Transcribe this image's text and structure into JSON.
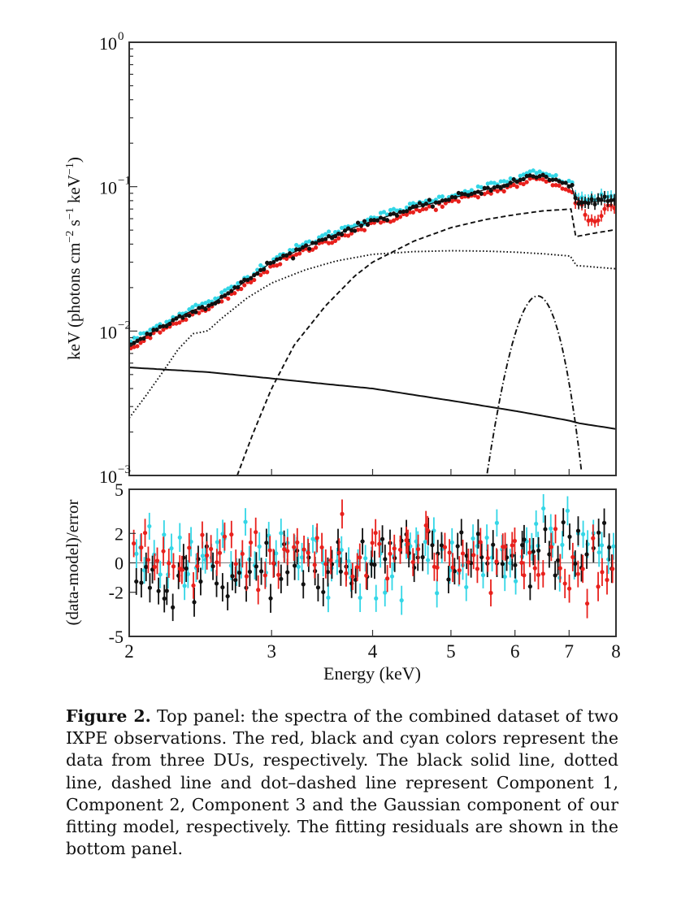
{
  "chart_data": [
    {
      "panel": "top",
      "type": "scatter",
      "xscale": "log",
      "yscale": "log",
      "xlim": [
        2,
        8
      ],
      "ylim": [
        0.001,
        1
      ],
      "xlabel": "",
      "ylabel": "keV (photons cm^-2 s^-1 keV^-1)",
      "ylabel_parts": {
        "base": "keV (photons cm",
        "e1": "−2",
        "mid": " s",
        "e2": "−1",
        "mid2": " keV",
        "e3": "−1",
        "end": ")"
      },
      "yticks": [
        {
          "value": 1,
          "base": "10",
          "exp": "0"
        },
        {
          "value": 0.1,
          "base": "10",
          "exp": "−1"
        },
        {
          "value": 0.01,
          "base": "10",
          "exp": "−2"
        },
        {
          "value": 0.001,
          "base": "10",
          "exp": "−3"
        }
      ],
      "data_series": [
        {
          "name": "DU (red)",
          "color": "#e8201c",
          "offset": 0.94
        },
        {
          "name": "DU (black)",
          "color": "#111111",
          "offset": 1.0
        },
        {
          "name": "DU (cyan)",
          "color": "#33d6e6",
          "offset": 1.05
        }
      ],
      "total_model_curve": {
        "x": [
          2.0,
          2.2,
          2.4,
          2.5,
          2.7,
          3.0,
          3.5,
          4.0,
          4.5,
          5.0,
          5.5,
          6.0,
          6.3,
          6.5,
          6.8,
          7.05,
          7.12,
          7.3,
          7.6,
          8.0
        ],
        "y": [
          0.008,
          0.0108,
          0.014,
          0.0148,
          0.0195,
          0.03,
          0.044,
          0.058,
          0.071,
          0.083,
          0.095,
          0.108,
          0.119,
          0.118,
          0.108,
          0.101,
          0.082,
          0.078,
          0.079,
          0.081
        ]
      },
      "model_components": [
        {
          "name": "Component 1",
          "style": "solid",
          "x": [
            2.0,
            2.5,
            3.0,
            3.5,
            4.0,
            5.0,
            6.0,
            7.0,
            7.2,
            8.0
          ],
          "y": [
            0.0056,
            0.0052,
            0.0047,
            0.0043,
            0.004,
            0.0033,
            0.0028,
            0.0024,
            0.0023,
            0.0021
          ]
        },
        {
          "name": "Component 2",
          "style": "dotted",
          "x": [
            2.0,
            2.1,
            2.2,
            2.3,
            2.4,
            2.5,
            2.6,
            2.8,
            3.0,
            3.3,
            3.6,
            4.0,
            4.5,
            5.0,
            5.5,
            6.0,
            6.5,
            7.05,
            7.12,
            7.5,
            8.0
          ],
          "y": [
            0.0025,
            0.0036,
            0.0052,
            0.0075,
            0.0096,
            0.01,
            0.0122,
            0.017,
            0.0215,
            0.0265,
            0.0305,
            0.034,
            0.0355,
            0.036,
            0.0358,
            0.0352,
            0.0343,
            0.033,
            0.0285,
            0.0278,
            0.027
          ]
        },
        {
          "name": "Component 3",
          "style": "dashed",
          "x": [
            2.72,
            2.85,
            3.0,
            3.2,
            3.5,
            3.8,
            4.0,
            4.5,
            5.0,
            5.5,
            6.0,
            6.5,
            7.05,
            7.12,
            7.5,
            8.0
          ],
          "y": [
            0.001,
            0.002,
            0.004,
            0.008,
            0.015,
            0.024,
            0.03,
            0.042,
            0.052,
            0.059,
            0.064,
            0.068,
            0.07,
            0.045,
            0.0475,
            0.0505
          ]
        },
        {
          "name": "Gaussian component",
          "style": "dash-dot",
          "center": 6.4,
          "peak": 0.0175,
          "x": [
            5.44,
            5.6,
            5.8,
            6.0,
            6.2,
            6.4,
            6.6,
            6.8,
            7.0,
            7.2,
            7.36
          ],
          "y": [
            0.001,
            0.0019,
            0.0044,
            0.009,
            0.0145,
            0.0175,
            0.015,
            0.0098,
            0.0048,
            0.002,
            0.001
          ]
        }
      ]
    },
    {
      "panel": "bottom",
      "type": "scatter",
      "xscale": "log",
      "xlim": [
        2,
        8
      ],
      "ylim": [
        -5,
        5
      ],
      "xlabel": "Energy (keV)",
      "ylabel": "(data-model)/error",
      "xticks": [
        {
          "value": 2,
          "label": "2"
        },
        {
          "value": 3,
          "label": "3"
        },
        {
          "value": 4,
          "label": "4"
        },
        {
          "value": 5,
          "label": "5"
        },
        {
          "value": 6,
          "label": "6"
        },
        {
          "value": 7,
          "label": "7"
        },
        {
          "value": 8,
          "label": "8"
        }
      ],
      "yticks": [
        {
          "value": 5,
          "label": "5"
        },
        {
          "value": 2,
          "label": "2"
        },
        {
          "value": 0,
          "label": "0"
        },
        {
          "value": -2,
          "label": "-2"
        },
        {
          "value": -5,
          "label": "-5"
        }
      ],
      "reference_line": 0,
      "residual_series": [
        {
          "name": "DU (red)",
          "color": "#e8201c",
          "trend": [
            [
              2,
              0.4
            ],
            [
              4,
              0.6
            ],
            [
              6,
              0.2
            ],
            [
              7,
              -0.9
            ],
            [
              7.7,
              -1.6
            ],
            [
              8,
              -1.2
            ]
          ]
        },
        {
          "name": "DU (black)",
          "color": "#111111",
          "trend": [
            [
              2,
              -1.2
            ],
            [
              3,
              -0.6
            ],
            [
              4,
              0.0
            ],
            [
              5,
              0.6
            ],
            [
              6,
              0.5
            ],
            [
              7,
              0.5
            ],
            [
              8,
              1.2
            ]
          ]
        },
        {
          "name": "DU (cyan)",
          "color": "#33d6e6",
          "trend": [
            [
              2,
              0.9
            ],
            [
              3,
              0.5
            ],
            [
              4,
              -0.4
            ],
            [
              5,
              0.0
            ],
            [
              6,
              0.6
            ],
            [
              7,
              0.9
            ],
            [
              8,
              0.6
            ]
          ]
        }
      ],
      "residual_spread": 1.1,
      "residual_error": 0.9
    }
  ],
  "caption": {
    "label": "Figure 2.",
    "text": "Top panel: the spectra of the combined dataset of two IXPE observations. The red, black and cyan colors represent the data from three DUs, respectively. The black solid line, dotted line, dashed line and dot–dashed line represent Component 1, Component 2, Component 3 and the Gaussian component of our fitting model, respectively. The fitting residuals are shown in the bottom panel."
  }
}
